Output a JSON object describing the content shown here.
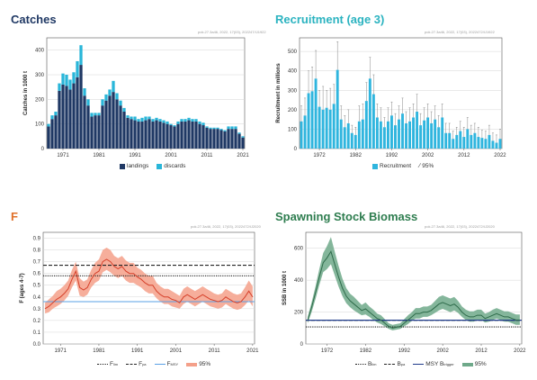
{
  "panels": {
    "catches": {
      "title": "Catches",
      "stamp": "pok.27.3a46, 2022, 17(03), 202247/IJ1922"
    },
    "recruitment": {
      "title": "Recruitment (age 3)",
      "stamp": "pok.27.3a46, 2022, 17(03), 2022472/IJ1922"
    },
    "f": {
      "title": "F",
      "stamp": "pok.27.3a46, 2022, 17(03), 2022472/IJ2020"
    },
    "ssb": {
      "title": "Spawning Stock Biomass",
      "stamp": "pok.27.3a46, 2022, 17(03), 2022472/IJ2020"
    }
  },
  "legends": {
    "catches": {
      "landings": "landings",
      "discards": "discards"
    },
    "recruitment": {
      "recruitment": "Recruitment",
      "ci": "95%"
    },
    "f": {
      "flim": "F",
      "flim_sub": "lim",
      "fpa": "F",
      "fpa_sub": "pa",
      "fmsy": "F",
      "fmsy_sub": "MSY",
      "ci": "95%"
    },
    "ssb": {
      "blim": "B",
      "blim_sub": "lim",
      "bpa": "B",
      "bpa_sub": "pa",
      "msyb": "MSY B",
      "msyb_sub": "trigger",
      "ci": "95%"
    }
  },
  "colors": {
    "landings": "#1f3864",
    "discards": "#29b6d9",
    "recruitment": "#2fb5de",
    "f_line": "#d6412b",
    "f_band": "#f4a08a",
    "fmsy": "#5aa0e6",
    "ssb_line": "#2e6b4a",
    "ssb_band": "#6fa98a",
    "msyb": "#1f3a8a",
    "ref": "#222222"
  },
  "chart_data": [
    {
      "type": "bar",
      "panel": "catches",
      "ylabel": "Catches in 1000 t",
      "ylim": [
        0,
        450
      ],
      "yticks": [
        0,
        100,
        200,
        300,
        400
      ],
      "xticks": [
        1971,
        1981,
        1991,
        2001,
        2011,
        2021
      ],
      "x": [
        1967,
        1968,
        1969,
        1970,
        1971,
        1972,
        1973,
        1974,
        1975,
        1976,
        1977,
        1978,
        1979,
        1980,
        1981,
        1982,
        1983,
        1984,
        1985,
        1986,
        1987,
        1988,
        1989,
        1990,
        1991,
        1992,
        1993,
        1994,
        1995,
        1996,
        1997,
        1998,
        1999,
        2000,
        2001,
        2002,
        2003,
        2004,
        2005,
        2006,
        2007,
        2008,
        2009,
        2010,
        2011,
        2012,
        2013,
        2014,
        2015,
        2016,
        2017,
        2018,
        2019,
        2020,
        2021
      ],
      "series": [
        {
          "name": "landings",
          "values": [
            90,
            120,
            135,
            235,
            260,
            255,
            240,
            265,
            290,
            340,
            215,
            175,
            130,
            135,
            135,
            175,
            195,
            215,
            230,
            200,
            175,
            150,
            125,
            120,
            115,
            110,
            110,
            115,
            120,
            110,
            115,
            110,
            105,
            100,
            95,
            90,
            100,
            110,
            110,
            115,
            110,
            110,
            100,
            95,
            85,
            80,
            80,
            80,
            75,
            70,
            80,
            80,
            80,
            60,
            45
          ]
        },
        {
          "name": "discards",
          "values": [
            10,
            15,
            15,
            30,
            45,
            45,
            40,
            45,
            65,
            80,
            30,
            25,
            15,
            10,
            10,
            25,
            25,
            25,
            45,
            25,
            20,
            15,
            10,
            10,
            15,
            10,
            15,
            15,
            10,
            10,
            10,
            10,
            10,
            10,
            5,
            5,
            10,
            10,
            10,
            10,
            10,
            10,
            10,
            10,
            5,
            5,
            5,
            5,
            5,
            5,
            10,
            10,
            10,
            5,
            5
          ]
        }
      ]
    },
    {
      "type": "bar",
      "panel": "recruitment",
      "ylabel": "Recruitment in millions",
      "ylim": [
        0,
        570
      ],
      "yticks": [
        0,
        100,
        200,
        300,
        400,
        500
      ],
      "xticks": [
        1972,
        1982,
        1992,
        2002,
        2012,
        2022
      ],
      "x": [
        1967,
        1968,
        1969,
        1970,
        1971,
        1972,
        1973,
        1974,
        1975,
        1976,
        1977,
        1978,
        1979,
        1980,
        1981,
        1982,
        1983,
        1984,
        1985,
        1986,
        1987,
        1988,
        1989,
        1990,
        1991,
        1992,
        1993,
        1994,
        1995,
        1996,
        1997,
        1998,
        1999,
        2000,
        2001,
        2002,
        2003,
        2004,
        2005,
        2006,
        2007,
        2008,
        2009,
        2010,
        2011,
        2012,
        2013,
        2014,
        2015,
        2016,
        2017,
        2018,
        2019,
        2020,
        2021,
        2022
      ],
      "series": [
        {
          "name": "Recruitment",
          "values": [
            140,
            170,
            285,
            295,
            360,
            215,
            200,
            210,
            200,
            230,
            405,
            150,
            110,
            130,
            80,
            70,
            140,
            150,
            245,
            360,
            280,
            160,
            140,
            110,
            140,
            170,
            120,
            150,
            180,
            130,
            140,
            160,
            190,
            120,
            145,
            160,
            130,
            150,
            110,
            160,
            80,
            80,
            50,
            70,
            90,
            60,
            100,
            70,
            80,
            60,
            55,
            50,
            70,
            40,
            30,
            50
          ]
        },
        {
          "name": "95%",
          "upper": [
            220,
            260,
            400,
            420,
            505,
            300,
            320,
            300,
            310,
            330,
            550,
            220,
            170,
            200,
            120,
            110,
            220,
            230,
            340,
            470,
            380,
            230,
            210,
            160,
            210,
            240,
            180,
            220,
            260,
            190,
            210,
            230,
            280,
            180,
            210,
            230,
            190,
            220,
            170,
            230,
            130,
            130,
            90,
            110,
            140,
            110,
            160,
            120,
            130,
            110,
            95,
            90,
            120,
            80,
            70,
            100
          ]
        }
      ]
    },
    {
      "type": "line",
      "panel": "f",
      "ylabel": "F (ages 4-7)",
      "ylim": [
        0,
        0.95
      ],
      "yticks": [
        0,
        0.1,
        0.2,
        0.3,
        0.4,
        0.5,
        0.6,
        0.7,
        0.8,
        0.9
      ],
      "xticks": [
        1971,
        1981,
        1991,
        2001,
        2011,
        2021
      ],
      "x": [
        1967,
        1968,
        1969,
        1970,
        1971,
        1972,
        1973,
        1974,
        1975,
        1976,
        1977,
        1978,
        1979,
        1980,
        1981,
        1982,
        1983,
        1984,
        1985,
        1986,
        1987,
        1988,
        1989,
        1990,
        1991,
        1992,
        1993,
        1994,
        1995,
        1996,
        1997,
        1998,
        1999,
        2000,
        2001,
        2002,
        2003,
        2004,
        2005,
        2006,
        2007,
        2008,
        2009,
        2010,
        2011,
        2012,
        2013,
        2014,
        2015,
        2016,
        2017,
        2018,
        2019,
        2020,
        2021
      ],
      "series": [
        {
          "name": "F",
          "values": [
            0.3,
            0.32,
            0.35,
            0.38,
            0.4,
            0.43,
            0.47,
            0.55,
            0.62,
            0.48,
            0.46,
            0.48,
            0.55,
            0.6,
            0.62,
            0.7,
            0.72,
            0.7,
            0.66,
            0.64,
            0.66,
            0.62,
            0.6,
            0.6,
            0.57,
            0.55,
            0.52,
            0.5,
            0.5,
            0.45,
            0.42,
            0.4,
            0.4,
            0.38,
            0.37,
            0.35,
            0.4,
            0.42,
            0.4,
            0.38,
            0.4,
            0.42,
            0.4,
            0.38,
            0.37,
            0.36,
            0.37,
            0.4,
            0.38,
            0.36,
            0.35,
            0.36,
            0.4,
            0.45,
            0.4
          ]
        },
        {
          "name": "95%",
          "lower": [
            0.26,
            0.27,
            0.3,
            0.32,
            0.34,
            0.37,
            0.41,
            0.48,
            0.54,
            0.41,
            0.4,
            0.42,
            0.48,
            0.52,
            0.54,
            0.61,
            0.63,
            0.61,
            0.58,
            0.56,
            0.58,
            0.54,
            0.52,
            0.52,
            0.5,
            0.48,
            0.45,
            0.43,
            0.43,
            0.39,
            0.36,
            0.34,
            0.34,
            0.32,
            0.31,
            0.3,
            0.34,
            0.36,
            0.34,
            0.32,
            0.34,
            0.36,
            0.34,
            0.32,
            0.31,
            0.3,
            0.31,
            0.34,
            0.32,
            0.3,
            0.29,
            0.3,
            0.33,
            0.37,
            0.32
          ],
          "upper": [
            0.35,
            0.38,
            0.41,
            0.45,
            0.47,
            0.5,
            0.54,
            0.63,
            0.7,
            0.56,
            0.53,
            0.55,
            0.63,
            0.69,
            0.72,
            0.8,
            0.82,
            0.8,
            0.75,
            0.73,
            0.75,
            0.71,
            0.69,
            0.69,
            0.65,
            0.63,
            0.6,
            0.58,
            0.58,
            0.52,
            0.49,
            0.47,
            0.47,
            0.45,
            0.43,
            0.41,
            0.47,
            0.49,
            0.47,
            0.45,
            0.47,
            0.49,
            0.47,
            0.45,
            0.43,
            0.42,
            0.43,
            0.47,
            0.45,
            0.43,
            0.42,
            0.43,
            0.48,
            0.54,
            0.49
          ]
        }
      ],
      "reference_lines": [
        {
          "name": "Flim",
          "y": 0.67,
          "style": "dashed"
        },
        {
          "name": "Fpa",
          "y": 0.58,
          "style": "dotted"
        },
        {
          "name": "FMSY",
          "y": 0.36,
          "style": "solid"
        }
      ]
    },
    {
      "type": "line",
      "panel": "ssb",
      "ylabel": "SSB in 1000 t",
      "ylim": [
        0,
        700
      ],
      "yticks": [
        0,
        200,
        400,
        600
      ],
      "xticks": [
        1972,
        1982,
        1992,
        2002,
        2012,
        2022
      ],
      "x": [
        1967,
        1968,
        1969,
        1970,
        1971,
        1972,
        1973,
        1974,
        1975,
        1976,
        1977,
        1978,
        1979,
        1980,
        1981,
        1982,
        1983,
        1984,
        1985,
        1986,
        1987,
        1988,
        1989,
        1990,
        1991,
        1992,
        1993,
        1994,
        1995,
        1996,
        1997,
        1998,
        1999,
        2000,
        2001,
        2002,
        2003,
        2004,
        2005,
        2006,
        2007,
        2008,
        2009,
        2010,
        2011,
        2012,
        2013,
        2014,
        2015,
        2016,
        2017,
        2018,
        2019,
        2020,
        2021,
        2022
      ],
      "series": [
        {
          "name": "SSB",
          "values": [
            150,
            230,
            320,
            420,
            510,
            540,
            580,
            500,
            420,
            350,
            300,
            270,
            250,
            230,
            210,
            220,
            200,
            180,
            160,
            150,
            130,
            110,
            100,
            105,
            110,
            130,
            150,
            170,
            190,
            190,
            200,
            200,
            210,
            230,
            250,
            260,
            250,
            240,
            250,
            230,
            200,
            180,
            170,
            170,
            180,
            180,
            160,
            170,
            180,
            190,
            180,
            170,
            170,
            160,
            150,
            150
          ]
        },
        {
          "name": "95%",
          "lower": [
            130,
            200,
            280,
            370,
            450,
            470,
            500,
            430,
            360,
            300,
            255,
            230,
            210,
            195,
            180,
            185,
            170,
            150,
            135,
            125,
            110,
            95,
            85,
            90,
            95,
            110,
            125,
            145,
            160,
            160,
            170,
            170,
            180,
            195,
            210,
            220,
            210,
            200,
            210,
            195,
            170,
            150,
            140,
            140,
            150,
            150,
            135,
            140,
            150,
            160,
            150,
            140,
            140,
            130,
            120,
            120
          ],
          "upper": [
            170,
            260,
            360,
            470,
            570,
            615,
            670,
            580,
            490,
            410,
            350,
            315,
            295,
            270,
            245,
            260,
            235,
            215,
            190,
            180,
            155,
            130,
            120,
            125,
            130,
            155,
            180,
            200,
            225,
            225,
            235,
            235,
            245,
            270,
            295,
            305,
            295,
            285,
            295,
            270,
            235,
            215,
            205,
            205,
            215,
            215,
            190,
            200,
            215,
            225,
            215,
            205,
            205,
            195,
            185,
            185
          ]
        }
      ],
      "reference_lines": [
        {
          "name": "Blim",
          "y": 107,
          "style": "dotted"
        },
        {
          "name": "Bpa",
          "y": 149,
          "style": "dashed"
        },
        {
          "name": "MSY Btrigger",
          "y": 149,
          "style": "solid"
        }
      ]
    }
  ]
}
